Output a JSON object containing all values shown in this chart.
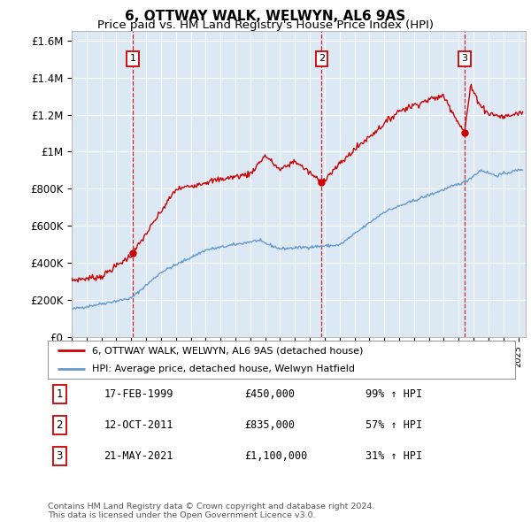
{
  "title": "6, OTTWAY WALK, WELWYN, AL6 9AS",
  "subtitle": "Price paid vs. HM Land Registry's House Price Index (HPI)",
  "ylim": [
    0,
    1650000
  ],
  "yticks": [
    0,
    200000,
    400000,
    600000,
    800000,
    1000000,
    1200000,
    1400000,
    1600000
  ],
  "ytick_labels": [
    "£0",
    "£200K",
    "£400K",
    "£600K",
    "£800K",
    "£1M",
    "£1.2M",
    "£1.4M",
    "£1.6M"
  ],
  "xmin": 1995.0,
  "xmax": 2025.5,
  "sales": [
    {
      "date": 1999.12,
      "price": 450000,
      "label": "1"
    },
    {
      "date": 2011.79,
      "price": 835000,
      "label": "2"
    },
    {
      "date": 2021.38,
      "price": 1100000,
      "label": "3"
    }
  ],
  "sale_line_color": "#cc0000",
  "hpi_line_color": "#6699cc",
  "legend_entries": [
    "6, OTTWAY WALK, WELWYN, AL6 9AS (detached house)",
    "HPI: Average price, detached house, Welwyn Hatfield"
  ],
  "table_rows": [
    {
      "num": "1",
      "date": "17-FEB-1999",
      "price": "£450,000",
      "hpi": "99% ↑ HPI"
    },
    {
      "num": "2",
      "date": "12-OCT-2011",
      "price": "£835,000",
      "hpi": "57% ↑ HPI"
    },
    {
      "num": "3",
      "date": "21-MAY-2021",
      "price": "£1,100,000",
      "hpi": "31% ↑ HPI"
    }
  ],
  "footnote": "Contains HM Land Registry data © Crown copyright and database right 2024.\nThis data is licensed under the Open Government Licence v3.0.",
  "background_color": "#ffffff",
  "plot_bg_color": "#dce9f5",
  "grid_color": "#ffffff",
  "title_fontsize": 11,
  "subtitle_fontsize": 9.5
}
